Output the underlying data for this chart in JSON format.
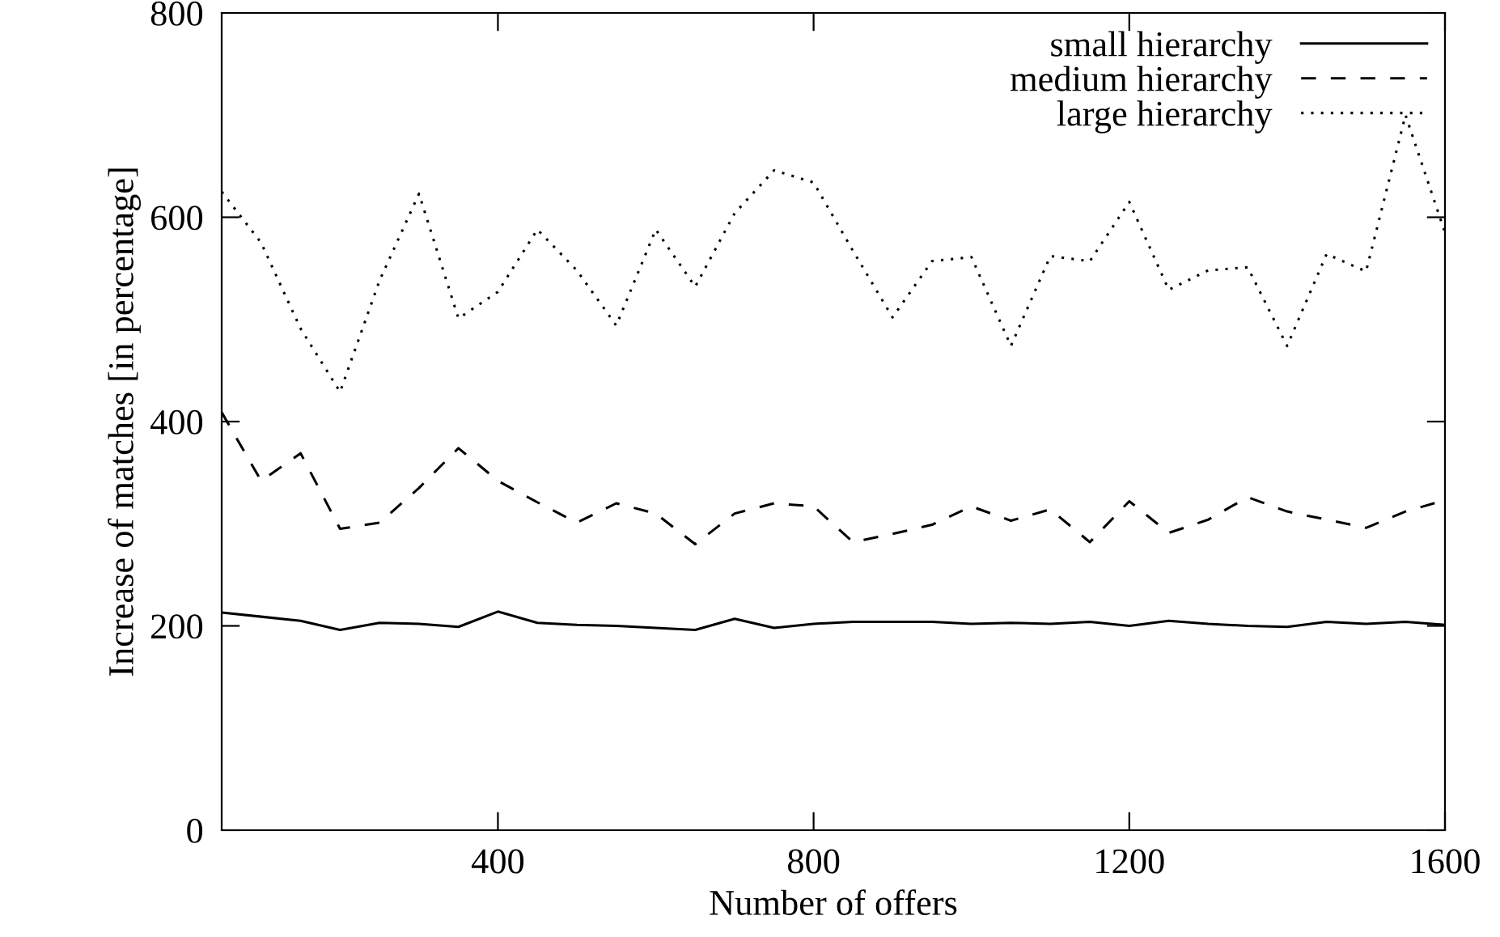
{
  "chart_data": {
    "type": "line",
    "xlabel": "Number of offers",
    "ylabel": "Increase of matches [in percentage]",
    "x": [
      50,
      100,
      150,
      200,
      250,
      300,
      350,
      400,
      450,
      500,
      550,
      600,
      650,
      700,
      750,
      800,
      850,
      900,
      950,
      1000,
      1050,
      1100,
      1150,
      1200,
      1250,
      1300,
      1350,
      1400,
      1450,
      1500,
      1550,
      1600
    ],
    "series": [
      {
        "name": "small hierarchy",
        "color": "#000000",
        "line_style": "solid",
        "values": [
          213,
          209,
          205,
          196,
          203,
          202,
          199,
          214,
          203,
          201,
          200,
          198,
          196,
          207,
          198,
          202,
          204,
          204,
          204,
          202,
          203,
          202,
          204,
          200,
          205,
          202,
          200,
          199,
          204,
          202,
          204,
          201
        ]
      },
      {
        "name": "medium hierarchy",
        "color": "#000000",
        "line_style": "dashed",
        "values": [
          409,
          342,
          369,
          295,
          301,
          335,
          374,
          342,
          321,
          301,
          320,
          310,
          280,
          310,
          320,
          317,
          282,
          290,
          299,
          317,
          303,
          314,
          282,
          322,
          291,
          304,
          326,
          312,
          304,
          296,
          312,
          323
        ]
      },
      {
        "name": "large hierarchy",
        "color": "#000000",
        "line_style": "dotted",
        "values": [
          625,
          575,
          491,
          429,
          538,
          623,
          501,
          527,
          588,
          548,
          494,
          588,
          532,
          604,
          646,
          634,
          567,
          502,
          557,
          561,
          474,
          562,
          557,
          615,
          529,
          548,
          551,
          474,
          564,
          547,
          700,
          585
        ]
      }
    ],
    "xlim": [
      50,
      1600
    ],
    "xticks": [
      400,
      800,
      1200,
      1600
    ],
    "ylim": [
      0,
      800
    ],
    "yticks": [
      0,
      200,
      400,
      600,
      800
    ],
    "grid": false,
    "legend": "top right",
    "marker": "none"
  }
}
